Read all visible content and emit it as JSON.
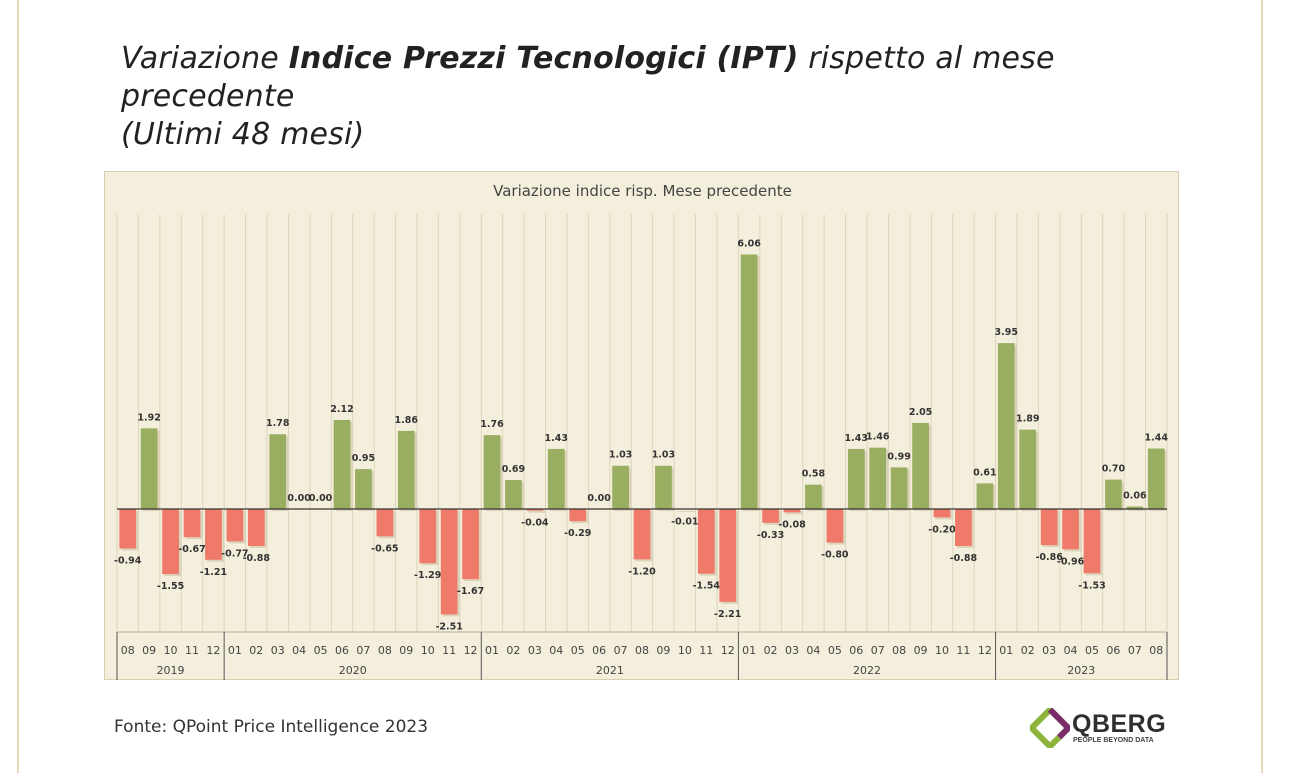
{
  "page": {
    "title_prefix": "Variazione ",
    "title_bold": "Indice Prezzi Tecnologici (IPT)",
    "title_suffix": " rispetto al mese precedente",
    "title_line2": "(Ultimi 48 mesi)",
    "source": "Fonte: QPoint Price Intelligence 2023",
    "logo_name": "QBERG",
    "logo_tagline": "PEOPLE BEYOND DATA"
  },
  "colors": {
    "positive": "#9aae62",
    "negative": "#f07a6a",
    "background": "#f4efdc",
    "logo_green": "#8db53c",
    "logo_purple": "#7b2d69"
  },
  "chart_data": {
    "type": "bar",
    "title": "Variazione indice risp. Mese precedente",
    "xlabel": "",
    "ylabel": "",
    "ylim": [
      -3,
      7
    ],
    "categories": [
      "08",
      "09",
      "10",
      "11",
      "12",
      "01",
      "02",
      "03",
      "04",
      "05",
      "06",
      "07",
      "08",
      "09",
      "10",
      "11",
      "12",
      "01",
      "02",
      "03",
      "04",
      "05",
      "06",
      "07",
      "08",
      "09",
      "10",
      "11",
      "12",
      "01",
      "02",
      "03",
      "04",
      "05",
      "06",
      "07",
      "08",
      "09",
      "10",
      "11",
      "12",
      "01",
      "02",
      "03",
      "04",
      "05",
      "06",
      "07",
      "08"
    ],
    "values": [
      -0.94,
      1.92,
      -1.55,
      -0.67,
      -1.21,
      -0.77,
      -0.88,
      1.78,
      0.0,
      0.0,
      2.12,
      0.95,
      -0.65,
      1.86,
      -1.29,
      -2.51,
      -1.67,
      1.76,
      0.69,
      -0.04,
      1.43,
      -0.29,
      0.0,
      1.03,
      -1.2,
      1.03,
      -0.01,
      -1.54,
      -2.21,
      6.06,
      -0.33,
      -0.08,
      0.58,
      -0.8,
      1.43,
      1.46,
      0.99,
      2.05,
      -0.2,
      -0.88,
      0.61,
      3.95,
      1.89,
      -0.86,
      -0.96,
      -1.53,
      0.7,
      0.06,
      1.44
    ],
    "labels": [
      "-0.94",
      "1.92",
      "-1.55",
      "-0.67",
      "-1.21",
      "-0.77",
      "-0.88",
      "1.78",
      "0.00",
      "0.00",
      "2.12",
      "0.95",
      "-0.65",
      "1.86",
      "-1.29",
      "-2.51",
      "-1.67",
      "1.76",
      "0.69",
      "-0.04",
      "1.43",
      "-0.29",
      "0.00",
      "1.03",
      "-1.20",
      "1.03",
      "-0.01",
      "-1.54",
      "-2.21",
      "6.06",
      "-0.33",
      "-0.08",
      "0.58",
      "-0.80",
      "1.43",
      "1.46",
      "0.99",
      "2.05",
      "-0.20",
      "-0.88",
      "0.61",
      "3.95",
      "1.89",
      "-0.86",
      "-0.96",
      "-1.53",
      "0.70",
      "0.06",
      "1.44"
    ],
    "years": [
      {
        "label": "2019",
        "start": 0,
        "end": 4
      },
      {
        "label": "2020",
        "start": 5,
        "end": 16
      },
      {
        "label": "2021",
        "start": 17,
        "end": 28
      },
      {
        "label": "2022",
        "start": 29,
        "end": 40
      },
      {
        "label": "2023",
        "start": 41,
        "end": 48
      }
    ]
  }
}
